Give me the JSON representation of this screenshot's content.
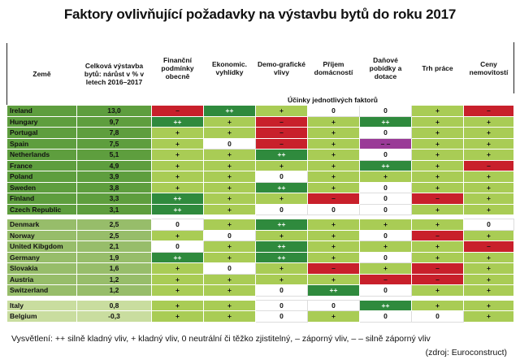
{
  "title": "Faktory ovlivňující požadavky na výstavbu bytů do roku 2017",
  "headers": {
    "country": "Země",
    "growth": "Celková výstavba bytů: nárůst v % v letech 2016–2017",
    "factors": [
      "Finanční podmínky obecně",
      "Ekonomic. vyhlídky",
      "Demo-grafické vlivy",
      "Příjem domácností",
      "Daňové pobídky a dotace",
      "Trh práce",
      "Ceny nemovitostí"
    ],
    "subheader": "Účinky jednotlivých faktorů"
  },
  "groups": [
    [
      {
        "country": "Ireland",
        "growth": "13,0",
        "effects": [
          "–",
          "++",
          "+",
          "0",
          "0",
          "+",
          "–"
        ]
      },
      {
        "country": "Hungary",
        "growth": "9,7",
        "effects": [
          "++",
          "+",
          "–",
          "+",
          "++",
          "+",
          "+"
        ]
      },
      {
        "country": "Portugal",
        "growth": "7,8",
        "effects": [
          "+",
          "+",
          "–",
          "+",
          "0",
          "+",
          "+"
        ]
      },
      {
        "country": "Spain",
        "growth": "7,5",
        "effects": [
          "+",
          "0",
          "–",
          "+",
          "– –",
          "+",
          "+"
        ]
      },
      {
        "country": "Netherlands",
        "growth": "5,1",
        "effects": [
          "+",
          "+",
          "++",
          "+",
          "0",
          "+",
          "+"
        ]
      },
      {
        "country": "France",
        "growth": "4,9",
        "effects": [
          "+",
          "+",
          "+",
          "+",
          "++",
          "+",
          "–"
        ]
      },
      {
        "country": "Poland",
        "growth": "3,9",
        "effects": [
          "+",
          "+",
          "0",
          "+",
          "+",
          "+",
          "+"
        ]
      },
      {
        "country": "Sweden",
        "growth": "3,8",
        "effects": [
          "+",
          "+",
          "++",
          "+",
          "0",
          "+",
          "+"
        ]
      },
      {
        "country": "Finland",
        "growth": "3,3",
        "effects": [
          "++",
          "+",
          "+",
          "–",
          "0",
          "–",
          "+"
        ]
      },
      {
        "country": "Czech Republic",
        "growth": "3,1",
        "effects": [
          "++",
          "+",
          "0",
          "0",
          "0",
          "+",
          "+"
        ]
      }
    ],
    [
      {
        "country": "Denmark",
        "growth": "2,5",
        "effects": [
          "0",
          "+",
          "++",
          "+",
          "+",
          "+",
          "0"
        ]
      },
      {
        "country": "Norway",
        "growth": "2,5",
        "effects": [
          "+",
          "0",
          "+",
          "+",
          "0",
          "–",
          "+"
        ]
      },
      {
        "country": "United Kibgdom",
        "growth": "2,1",
        "effects": [
          "0",
          "+",
          "++",
          "+",
          "+",
          "+",
          "–"
        ]
      },
      {
        "country": "Germany",
        "growth": "1,9",
        "effects": [
          "++",
          "+",
          "++",
          "+",
          "0",
          "+",
          "+"
        ]
      },
      {
        "country": "Slovakia",
        "growth": "1,6",
        "effects": [
          "+",
          "0",
          "+",
          "–",
          "+",
          "–",
          "+"
        ]
      },
      {
        "country": "Austria",
        "growth": "1,2",
        "effects": [
          "+",
          "+",
          "+",
          "+",
          "–",
          "–",
          "+"
        ]
      },
      {
        "country": "Switzerland",
        "growth": "1,2",
        "effects": [
          "+",
          "+",
          "0",
          "++",
          "0",
          "+",
          "+"
        ]
      }
    ],
    [
      {
        "country": "Italy",
        "growth": "0,8",
        "effects": [
          "+",
          "+",
          "0",
          "0",
          "++",
          "+",
          "+"
        ]
      },
      {
        "country": "Belgium",
        "growth": "-0,3",
        "effects": [
          "+",
          "+",
          "0",
          "+",
          "0",
          "0",
          "+"
        ]
      }
    ]
  ],
  "legend": "Vysvětlení: ++ silně kladný vliv, + kladný vliv, 0 neutrální či těžko zjistitelný, – záporný vliv, – – silně záporný vliv",
  "source": "(zdroj: Euroconstruct)",
  "colors": {
    "strong_positive": "#2f8a3d",
    "positive": "#a9cc55",
    "neutral": "#ffffff",
    "negative": "#c8202b",
    "strong_negative": "#9a3a97"
  }
}
